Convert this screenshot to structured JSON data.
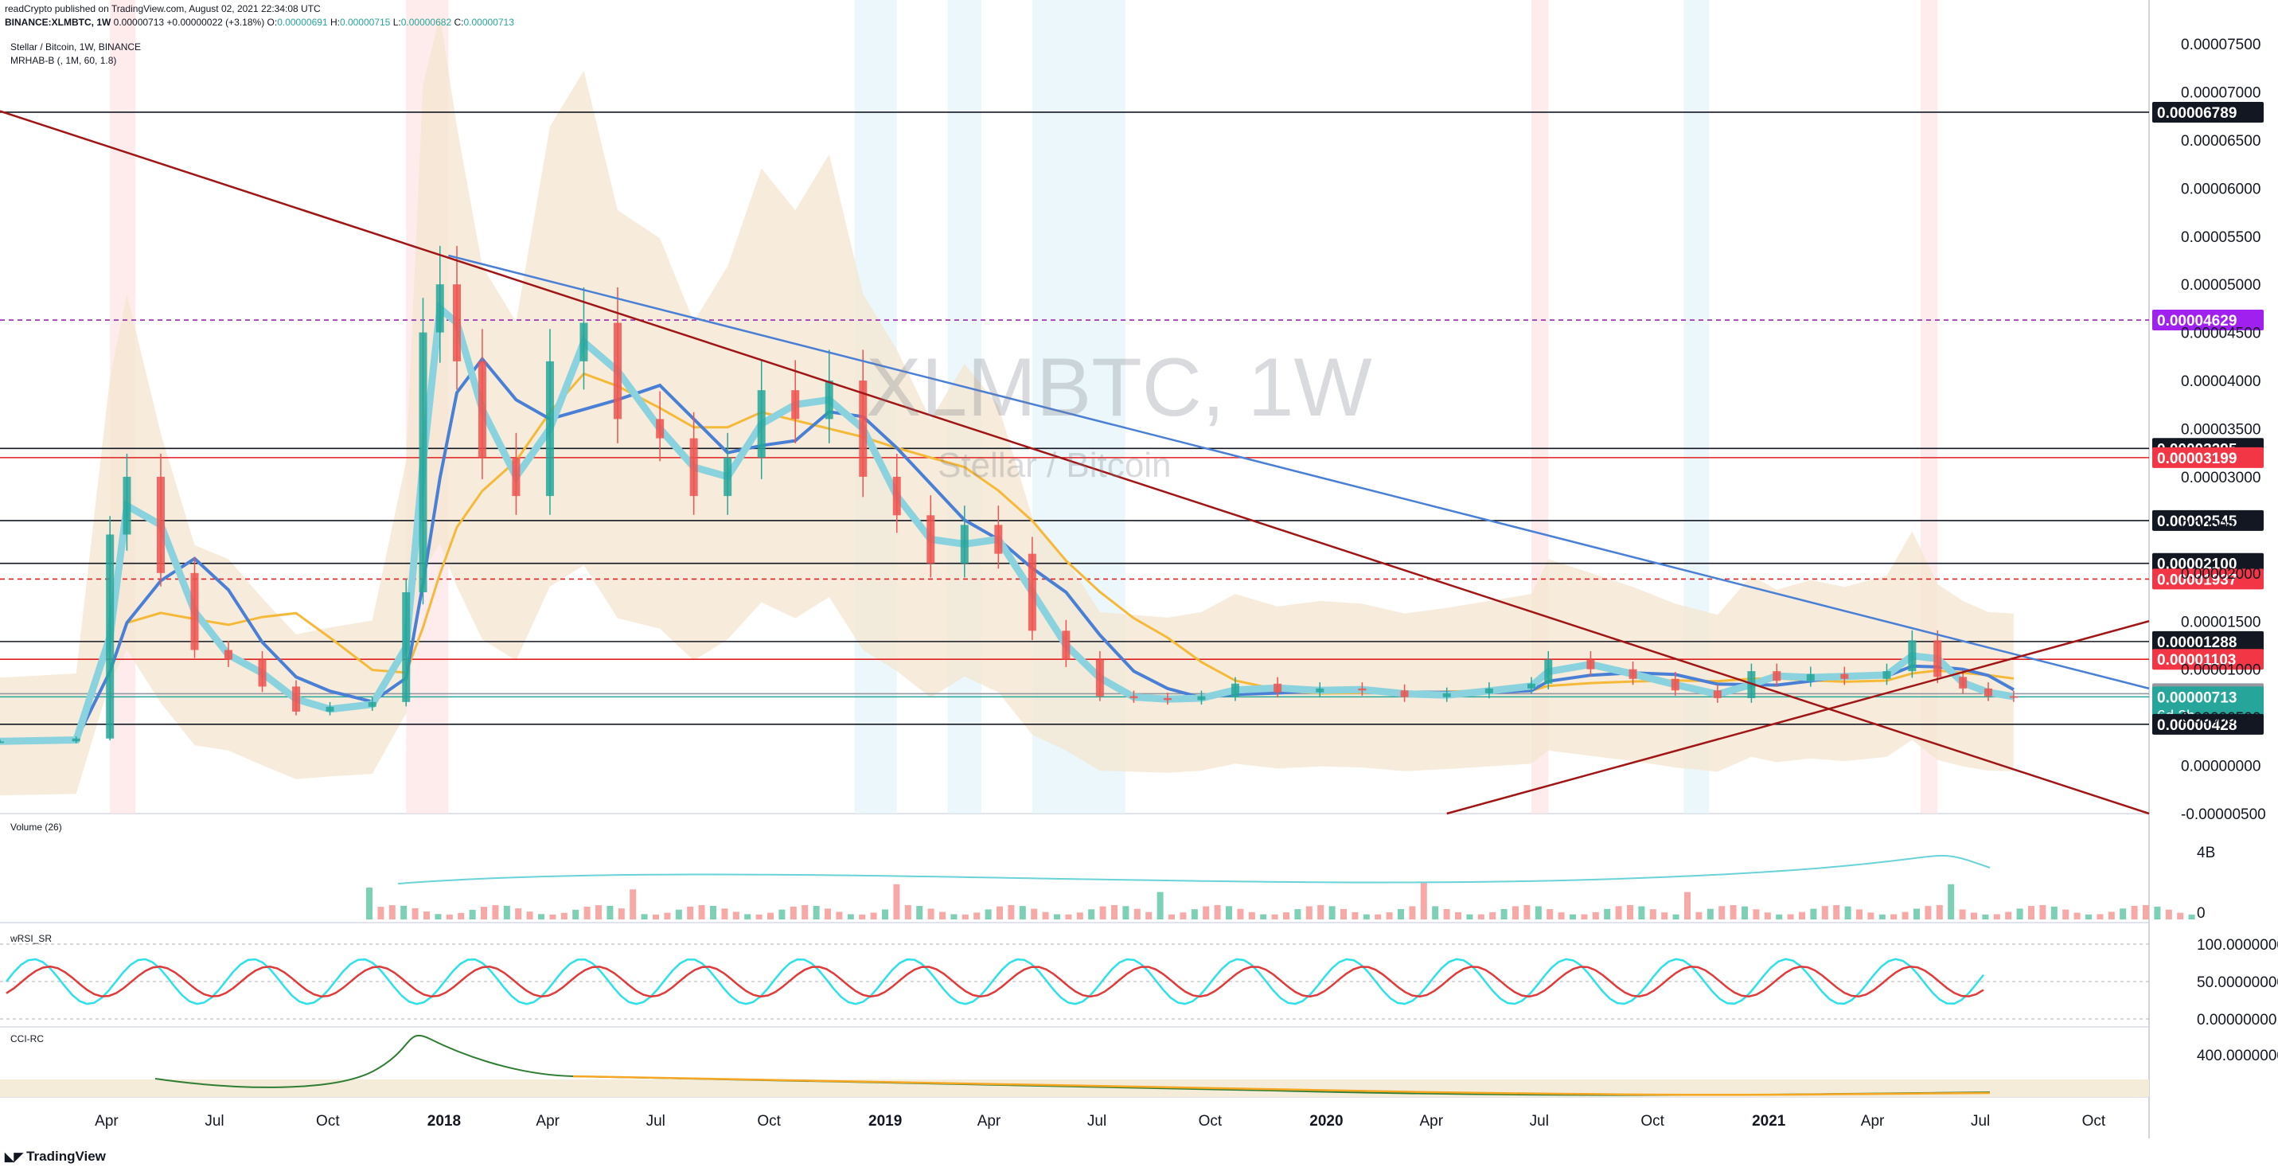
{
  "header": {
    "published": "readCrypto published on TradingView.com, August 02, 2021 22:34:08 UTC",
    "symbol": "BINANCE:XLMBTC, 1W",
    "last": "0.00000713",
    "change": "+0.00000022 (+3.18%)",
    "o_label": "O:",
    "o": "0.00000691",
    "h_label": "H:",
    "h": "0.00000715",
    "l_label": "L:",
    "l": "0.00000682",
    "c_label": "C:",
    "c": "0.00000713"
  },
  "legend": {
    "title": "Stellar / Bitcoin, 1W, BINANCE",
    "indicator": "MRHAB-B (, 1M, 60, 1.8)"
  },
  "watermark": {
    "symbol": "XLMBTC, 1W",
    "name": "Stellar / Bitcoin"
  },
  "footer": {
    "brand": "TradingView"
  },
  "colors": {
    "up": "#26a69a",
    "down": "#ef5350",
    "trend_blue": "#4a7fd6",
    "trend_red": "#a01515",
    "ma_orange": "#f5b93a",
    "cloud_beige": "#f4e6cf",
    "purple_label": "#9c27b0"
  },
  "chart_data": [
    {
      "type": "line",
      "pane": "price",
      "price_scale": {
        "min": -5e-06,
        "max": 7.5e-05,
        "ticks": [
          "0.00007500",
          "0.00007000",
          "0.00006500",
          "0.00006000",
          "0.00005500",
          "0.00005000",
          "0.00004500",
          "0.00004000",
          "0.00003500",
          "0.00003000",
          "0.00002500",
          "0.00002000",
          "0.00001500",
          "0.00001000",
          "0.00000500",
          "0.00000000",
          "-0.00000500"
        ]
      },
      "time_axis": {
        "labels": [
          "Apr",
          "Jul",
          "Oct",
          "2018",
          "Apr",
          "Jul",
          "Oct",
          "2019",
          "Apr",
          "Jul",
          "Oct",
          "2020",
          "Apr",
          "Jul",
          "Oct",
          "2021",
          "Apr",
          "Jul",
          "Oct"
        ],
        "start": "2017-01-02",
        "end": "2021-11-15"
      },
      "series": [
        {
          "kind": "close",
          "x": [
            "2017-01-02",
            "2017-03-06",
            "2017-04-03",
            "2017-04-17",
            "2017-05-15",
            "2017-06-12",
            "2017-07-10",
            "2017-08-07",
            "2017-09-04",
            "2017-10-02",
            "2017-11-06",
            "2017-12-04",
            "2017-12-18",
            "2018-01-01",
            "2018-01-15",
            "2018-02-05",
            "2018-03-05",
            "2018-04-02",
            "2018-04-30",
            "2018-05-28",
            "2018-07-02",
            "2018-07-30",
            "2018-08-27",
            "2018-09-24",
            "2018-10-22",
            "2018-11-19",
            "2018-12-17",
            "2019-01-14",
            "2019-02-11",
            "2019-03-11",
            "2019-04-08",
            "2019-05-06",
            "2019-06-03",
            "2019-07-01",
            "2019-07-29",
            "2019-08-26",
            "2019-09-23",
            "2019-10-21",
            "2019-11-25",
            "2019-12-30",
            "2020-02-03",
            "2020-03-09",
            "2020-04-13",
            "2020-05-18",
            "2020-06-22",
            "2020-07-06",
            "2020-08-10",
            "2020-09-14",
            "2020-10-19",
            "2020-11-23",
            "2020-12-21",
            "2021-01-11",
            "2021-02-08",
            "2021-03-08",
            "2021-04-12",
            "2021-05-03",
            "2021-05-24",
            "2021-06-14",
            "2021-07-05",
            "2021-07-26"
          ],
          "y": [
            2.5e-06,
            2.8e-06,
            2.4e-05,
            3e-05,
            2e-05,
            1.2e-05,
            1.1e-05,
            8.2e-06,
            5.6e-06,
            6.1e-06,
            6.6e-06,
            1.8e-05,
            4.5e-05,
            5e-05,
            4.2e-05,
            3.2e-05,
            2.8e-05,
            4.2e-05,
            4.6e-05,
            3.6e-05,
            3.4e-05,
            2.8e-05,
            3.2e-05,
            3.9e-05,
            3.6e-05,
            4e-05,
            3e-05,
            2.6e-05,
            2.1e-05,
            2.5e-05,
            2.2e-05,
            1.4e-05,
            1.1e-05,
            7.2e-06,
            7e-06,
            6.8e-06,
            7.2e-06,
            8.5e-06,
            7.6e-06,
            8e-06,
            7.8e-06,
            7.1e-06,
            7.5e-06,
            8e-06,
            8.5e-06,
            1.1e-05,
            1e-05,
            9e-06,
            7.8e-06,
            7e-06,
            9.8e-06,
            8.8e-06,
            9.5e-06,
            9e-06,
            9.8e-06,
            1.3e-05,
            9.2e-06,
            8e-06,
            7.2e-06,
            7.1e-06
          ]
        },
        {
          "kind": "trendline-blue",
          "x": [
            "2018-01-08",
            "2021-11-15"
          ],
          "y": [
            5.3e-05,
            8e-06
          ]
        },
        {
          "kind": "trendline-red-down",
          "x": [
            "2017-01-02",
            "2021-11-15"
          ],
          "y": [
            6.8e-05,
            -5e-06
          ]
        },
        {
          "kind": "trendline-red-up",
          "x": [
            "2020-04-13",
            "2021-11-15"
          ],
          "y": [
            -5e-06,
            1.5e-05
          ]
        }
      ],
      "horizontal_levels": [
        {
          "value": "0.00006789",
          "style": "black"
        },
        {
          "value": "0.00004629",
          "style": "purple-dashed"
        },
        {
          "value": "0.00003295",
          "style": "black"
        },
        {
          "value": "0.00003199",
          "style": "red"
        },
        {
          "value": "0.00002545",
          "style": "black"
        },
        {
          "value": "0.00002100",
          "style": "black"
        },
        {
          "value": "0.00001937",
          "style": "red-dashed"
        },
        {
          "value": "0.00001288",
          "style": "black"
        },
        {
          "value": "0.00001103",
          "style": "red"
        },
        {
          "value": "0.00000746",
          "style": "gray"
        },
        {
          "value": "0.00000713",
          "style": "teal",
          "extra": "6d 2h"
        },
        {
          "value": "0.00000428",
          "style": "black"
        }
      ]
    },
    {
      "type": "bar",
      "pane": "volume",
      "title": "Volume (26)",
      "scale_ticks": [
        "4B",
        "0"
      ]
    },
    {
      "type": "line",
      "pane": "wrsi",
      "title": "wRSI_SR",
      "scale_ticks": [
        "100.00000000",
        "50.00000000",
        "0.00000000"
      ]
    },
    {
      "type": "line",
      "pane": "cci",
      "title": "CCI-RC",
      "scale_ticks": [
        "400.00000000"
      ]
    }
  ]
}
